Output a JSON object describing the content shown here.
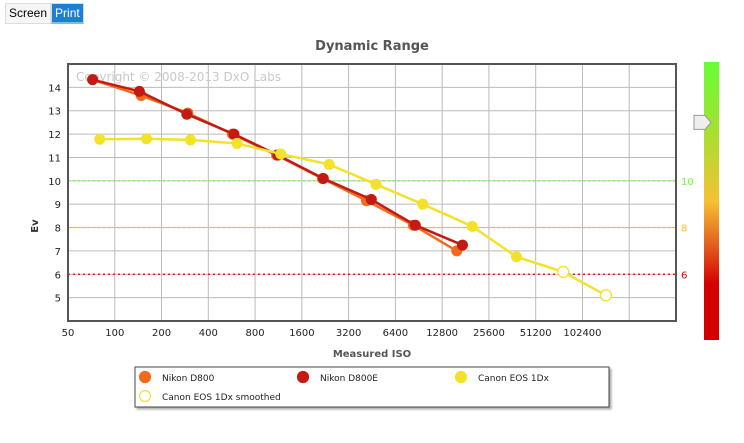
{
  "toolbar": {
    "screen_label": "Screen",
    "print_label": "Print",
    "active": "Print"
  },
  "colors": {
    "d800": "#f26a1b",
    "d800e": "#c41a14",
    "canon": "#f3e22a",
    "green": "#66ff33",
    "orange": "#f5c231",
    "red": "#d40000",
    "print_button": "#1c7fd6"
  },
  "chart_data": {
    "type": "line",
    "title": "Dynamic Range",
    "watermark": "Copyright © 2008-2013 DxO Labs",
    "xlabel": "Measured ISO",
    "ylabel": "Ev",
    "x_scale": "log2",
    "xlim": [
      50,
      409600
    ],
    "ylim": [
      4,
      15
    ],
    "x_ticks": [
      "50",
      "100",
      "200",
      "400",
      "800",
      "1600",
      "3200",
      "6400",
      "12800",
      "25600",
      "51200",
      "102400"
    ],
    "y_ticks": [
      "5",
      "6",
      "7",
      "8",
      "9",
      "10",
      "11",
      "12",
      "13",
      "14"
    ],
    "right_axis_ticks": [
      {
        "label": "10",
        "color": "#66ff33"
      },
      {
        "label": "8",
        "color": "#f5c231"
      },
      {
        "label": "6",
        "color": "#d40000"
      }
    ],
    "reference_lines": [
      {
        "ev": 10,
        "color": "#66ff33"
      },
      {
        "ev": 8,
        "color": "#f5c231"
      },
      {
        "ev": 6,
        "color": "#d40000"
      }
    ],
    "grid": true,
    "legend_position": "bottom",
    "series": [
      {
        "name": "Nikon D800",
        "color": "#f26a1b",
        "marker": "filled",
        "x": [
          72,
          148,
          295,
          572,
          1100,
          2170,
          4170,
          8350,
          15900
        ],
        "y": [
          14.33,
          13.65,
          12.9,
          12.0,
          11.1,
          10.1,
          9.15,
          8.1,
          7.0
        ]
      },
      {
        "name": "Nikon D800E",
        "color": "#c41a14",
        "marker": "filled",
        "x": [
          72,
          144,
          291,
          585,
          1120,
          2200,
          4480,
          8600,
          17300
        ],
        "y": [
          14.33,
          13.83,
          12.85,
          12.0,
          11.1,
          10.1,
          9.2,
          8.1,
          7.25
        ]
      },
      {
        "name": "Canon EOS 1Dx",
        "color": "#f3e22a",
        "marker": "filled",
        "x": [
          80,
          160,
          307,
          612,
          1170,
          2400,
          4800,
          9600,
          20000,
          38500
        ],
        "y": [
          11.78,
          11.8,
          11.75,
          11.6,
          11.15,
          10.7,
          9.85,
          9.0,
          8.05,
          6.75
        ]
      },
      {
        "name": "Canon EOS 1Dx smoothed",
        "color": "#f3e22a",
        "marker": "hollow",
        "x": [
          38500,
          77000,
          145000
        ],
        "y": [
          6.75,
          6.1,
          5.1
        ]
      }
    ],
    "color_scale": {
      "marker_ev": 12.5
    }
  }
}
